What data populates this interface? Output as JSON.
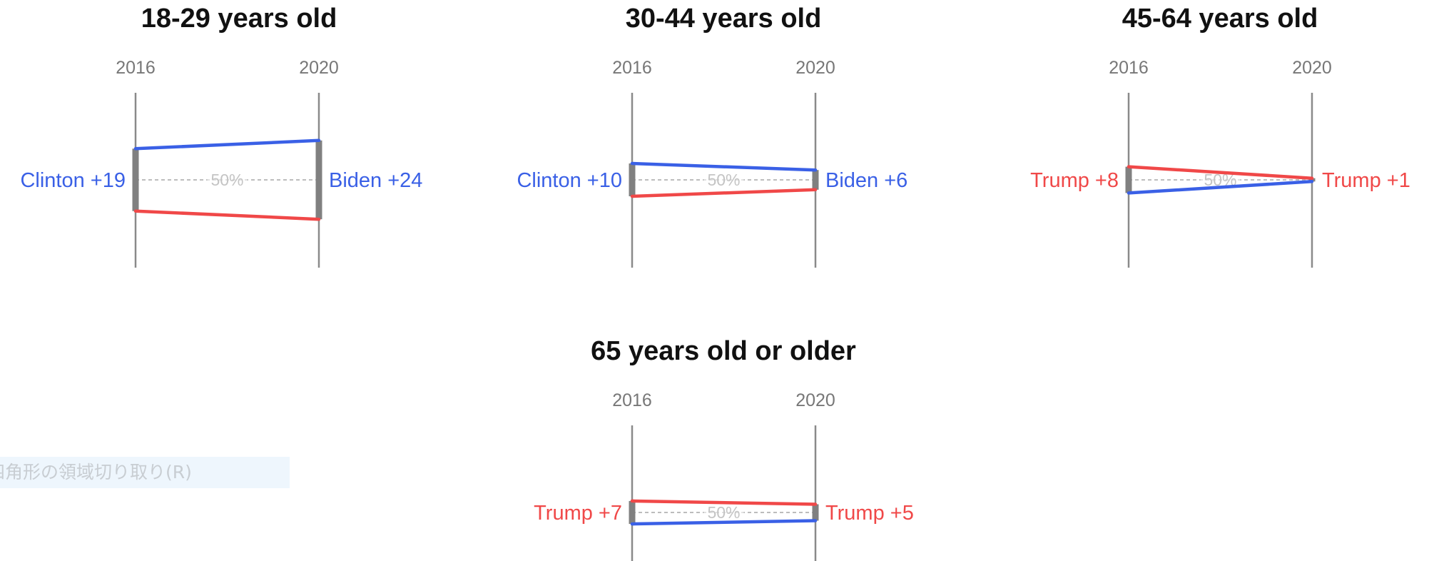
{
  "chart_data": [
    {
      "type": "line",
      "title": "18-29 years old",
      "x": [
        "2016",
        "2020"
      ],
      "midline_label": "50%",
      "series": [
        {
          "party": "Democrat",
          "color": "#3a60e6",
          "values": [
            59.5,
            62.0
          ]
        },
        {
          "party": "Republican",
          "color": "#f04848",
          "values": [
            40.5,
            38.0
          ]
        }
      ],
      "labels": {
        "left": "Clinton +19",
        "left_color": "#3a60e6",
        "right": "Biden +24",
        "right_color": "#3a60e6"
      }
    },
    {
      "type": "line",
      "title": "30-44 years old",
      "x": [
        "2016",
        "2020"
      ],
      "midline_label": "50%",
      "series": [
        {
          "party": "Democrat",
          "color": "#3a60e6",
          "values": [
            55.0,
            53.0
          ]
        },
        {
          "party": "Republican",
          "color": "#f04848",
          "values": [
            45.0,
            47.0
          ]
        }
      ],
      "labels": {
        "left": "Clinton +10",
        "left_color": "#3a60e6",
        "right": "Biden +6",
        "right_color": "#3a60e6"
      }
    },
    {
      "type": "line",
      "title": "45-64 years old",
      "x": [
        "2016",
        "2020"
      ],
      "midline_label": "50%",
      "series": [
        {
          "party": "Democrat",
          "color": "#3a60e6",
          "values": [
            46.0,
            49.5
          ]
        },
        {
          "party": "Republican",
          "color": "#f04848",
          "values": [
            54.0,
            50.5
          ]
        }
      ],
      "labels": {
        "left": "Trump +8",
        "left_color": "#f04848",
        "right": "Trump +1",
        "right_color": "#f04848"
      }
    },
    {
      "type": "line",
      "title": "65 years old or older",
      "x": [
        "2016",
        "2020"
      ],
      "midline_label": "50%",
      "series": [
        {
          "party": "Democrat",
          "color": "#3a60e6",
          "values": [
            46.5,
            47.5
          ]
        },
        {
          "party": "Republican",
          "color": "#f04848",
          "values": [
            53.5,
            52.5
          ]
        }
      ],
      "labels": {
        "left": "Trump +7",
        "left_color": "#f04848",
        "right": "Trump +5",
        "right_color": "#f04848"
      }
    }
  ],
  "overlay": {
    "tooltip_text": "四角形の領域切り取り(R)"
  }
}
